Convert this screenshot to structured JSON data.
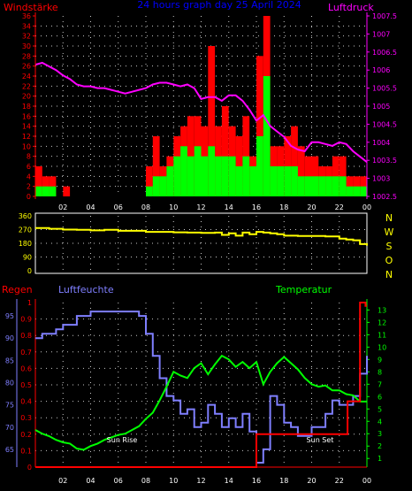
{
  "title": "24 hours graph day  25 April 2024",
  "colors": {
    "background": "#000000",
    "wind_avg": "#00ff00",
    "gust": "#ff0000",
    "pressure": "#ff00ff",
    "wind_dir": "#ffff00",
    "humidity": "#7f7fff",
    "temperature": "#00ff00",
    "rain": "#ff0000",
    "grid": "#c8c8c8",
    "axis_red": "#ff0000",
    "axis_magenta": "#ff00ff",
    "axis_yellow": "#ffff00",
    "axis_blue": "#7f7fff",
    "axis_green": "#00ff00",
    "tick_x": "#ffffff"
  },
  "chart_data": [
    {
      "type": "bar",
      "title": "24 hours graph day  25 April 2024",
      "ylabel_left": "Windstärke",
      "ylabel_right": "Luftdruck",
      "x_ticks": [
        "02",
        "04",
        "06",
        "08",
        "10",
        "12",
        "14",
        "16",
        "18",
        "20",
        "22",
        "00"
      ],
      "x_range": [
        0,
        24
      ],
      "ylim_left": [
        0,
        36
      ],
      "y_ticks_left": [
        "0",
        "2",
        "4",
        "6",
        "8",
        "10",
        "12",
        "14",
        "16",
        "18",
        "20",
        "22",
        "24",
        "26",
        "28",
        "30",
        "32",
        "34",
        "36"
      ],
      "ylim_right": [
        1002.5,
        1007.5
      ],
      "y_ticks_right": [
        "1002.5",
        "1003",
        "1003.5",
        "1004",
        "1004.5",
        "1005",
        "1005.5",
        "1006",
        "1006.5",
        "1007",
        "1007.5"
      ],
      "series": [
        {
          "name": "Luftdruck",
          "type": "line",
          "x": [
            0,
            0.5,
            1,
            1.5,
            2,
            2.5,
            3,
            3.5,
            4,
            4.5,
            5,
            5.5,
            6,
            6.5,
            7,
            7.5,
            8,
            8.5,
            9,
            9.5,
            10,
            10.5,
            11,
            11.5,
            12,
            12.5,
            13,
            13.5,
            14,
            14.5,
            15,
            15.5,
            16,
            16.5,
            17,
            17.5,
            18,
            18.5,
            19,
            19.5,
            20,
            20.5,
            21,
            21.5,
            22,
            22.5,
            23,
            23.5,
            24
          ],
          "y": [
            1006.15,
            1006.2,
            1006.1,
            1006.0,
            1005.85,
            1005.75,
            1005.6,
            1005.55,
            1005.55,
            1005.5,
            1005.5,
            1005.45,
            1005.4,
            1005.35,
            1005.4,
            1005.45,
            1005.5,
            1005.6,
            1005.65,
            1005.65,
            1005.6,
            1005.55,
            1005.6,
            1005.5,
            1005.2,
            1005.25,
            1005.25,
            1005.15,
            1005.3,
            1005.3,
            1005.15,
            1004.9,
            1004.6,
            1004.75,
            1004.45,
            1004.3,
            1004.15,
            1003.9,
            1003.8,
            1003.75,
            1004.0,
            1004.0,
            1003.95,
            1003.9,
            1004.0,
            1003.95,
            1003.75,
            1003.6,
            1003.45
          ]
        },
        {
          "name": "Windböen",
          "type": "bar",
          "x": [
            0,
            0.5,
            1,
            1.5,
            2,
            2.5,
            3,
            3.5,
            4,
            4.5,
            5,
            5.5,
            6,
            6.5,
            7,
            7.5,
            8,
            8.5,
            9,
            9.5,
            10,
            10.5,
            11,
            11.5,
            12,
            12.5,
            13,
            13.5,
            14,
            14.5,
            15,
            15.5,
            16,
            16.5,
            17,
            17.5,
            18,
            18.5,
            19,
            19.5,
            20,
            20.5,
            21,
            21.5,
            22,
            22.5,
            23,
            23.5
          ],
          "y": [
            6,
            4,
            4,
            0,
            2,
            0,
            0,
            0,
            0,
            0,
            0,
            0,
            0,
            0,
            0,
            0,
            6,
            12,
            6,
            8,
            12,
            14,
            16,
            16,
            14,
            30,
            14,
            18,
            14,
            12,
            16,
            8,
            28,
            36,
            10,
            10,
            12,
            14,
            10,
            8,
            8,
            6,
            6,
            8,
            8,
            4,
            4,
            4
          ]
        },
        {
          "name": "Windstärke",
          "type": "bar",
          "x": [
            0,
            0.5,
            1,
            1.5,
            2,
            2.5,
            3,
            3.5,
            4,
            4.5,
            5,
            5.5,
            6,
            6.5,
            7,
            7.5,
            8,
            8.5,
            9,
            9.5,
            10,
            10.5,
            11,
            11.5,
            12,
            12.5,
            13,
            13.5,
            14,
            14.5,
            15,
            15.5,
            16,
            16.5,
            17,
            17.5,
            18,
            18.5,
            19,
            19.5,
            20,
            20.5,
            21,
            21.5,
            22,
            22.5,
            23,
            23.5
          ],
          "y": [
            2,
            2,
            2,
            0,
            0,
            0,
            0,
            0,
            0,
            0,
            0,
            0,
            0,
            0,
            0,
            0,
            2,
            4,
            4,
            6,
            8,
            10,
            8,
            10,
            8,
            10,
            8,
            8,
            8,
            6,
            8,
            6,
            12,
            24,
            6,
            6,
            6,
            6,
            4,
            4,
            4,
            4,
            4,
            4,
            4,
            2,
            2,
            2
          ]
        }
      ]
    },
    {
      "type": "line",
      "ylabel_right": [
        "N",
        "W",
        "S",
        "O",
        "N"
      ],
      "x_range": [
        0,
        24
      ],
      "ylim": [
        0,
        360
      ],
      "y_ticks": [
        "0",
        "90",
        "180",
        "270",
        "360"
      ],
      "series": [
        {
          "name": "Windrichtung",
          "x": [
            0,
            1,
            2,
            3,
            4,
            5,
            6,
            7,
            8,
            9,
            10,
            11,
            12,
            13,
            13.5,
            14,
            14.5,
            15,
            15.5,
            16,
            16.5,
            17,
            17.5,
            18,
            19,
            20,
            21,
            22,
            22.5,
            23,
            23.5,
            24
          ],
          "y": [
            280,
            275,
            270,
            268,
            265,
            268,
            262,
            262,
            255,
            255,
            252,
            250,
            248,
            250,
            235,
            245,
            230,
            250,
            240,
            255,
            250,
            245,
            240,
            230,
            228,
            228,
            225,
            210,
            205,
            200,
            175,
            165
          ]
        }
      ]
    },
    {
      "type": "line",
      "ylabel_left": "Regen",
      "ylabel_center": "Luftfeuchte",
      "ylabel_right": "Temperatur",
      "annotations": [
        "Sun Rise",
        "Sun Set"
      ],
      "x_ticks": [
        "02",
        "04",
        "06",
        "08",
        "10",
        "12",
        "14",
        "16",
        "18",
        "20",
        "22",
        "00"
      ],
      "x_range": [
        0,
        24
      ],
      "rain_ticks": [
        "0",
        "0.1",
        "0.2",
        "0.3",
        "0.4",
        "0.5",
        "0.6",
        "0.7",
        "0.8",
        "0.9",
        "1"
      ],
      "rain_ylim": [
        0,
        1
      ],
      "humidity_ticks": [
        "65",
        "70",
        "75",
        "80",
        "85",
        "90",
        "95"
      ],
      "humidity_ylim": [
        61,
        98
      ],
      "temperature_ticks": [
        "1",
        "2",
        "3",
        "4",
        "5",
        "6",
        "7",
        "8",
        "9",
        "10",
        "11",
        "12",
        "13"
      ],
      "temperature_ylim": [
        0.3,
        13.6
      ],
      "series": [
        {
          "name": "Luftfeuchte",
          "x": [
            0,
            0.5,
            1,
            1.5,
            2,
            3,
            4,
            5,
            6,
            7,
            7.5,
            8,
            8.5,
            9,
            9.5,
            10,
            10.5,
            11,
            11.5,
            12,
            12.5,
            13,
            13.5,
            14,
            14.5,
            15,
            15.5,
            16,
            16.5,
            17,
            17.5,
            18,
            18.5,
            19,
            20,
            21,
            21.5,
            22,
            22.5,
            23,
            23.5,
            24
          ],
          "y": [
            90,
            91,
            91,
            92,
            93,
            95,
            96,
            96,
            96,
            96,
            95,
            91,
            86,
            81,
            77,
            76,
            73,
            74,
            70,
            71,
            75,
            73,
            70,
            72,
            70,
            73,
            69,
            62,
            65,
            77,
            75,
            71,
            70,
            68,
            70,
            73,
            76,
            75,
            75,
            77,
            82,
            86
          ]
        },
        {
          "name": "Temperatur",
          "x": [
            0,
            0.5,
            1,
            1.5,
            2,
            2.5,
            3,
            3.5,
            4,
            4.5,
            5,
            5.5,
            6,
            6.5,
            7,
            7.5,
            8,
            8.5,
            9,
            9.5,
            10,
            10.5,
            11,
            11.5,
            12,
            12.5,
            13,
            13.5,
            14,
            14.5,
            15,
            15.5,
            16,
            16.5,
            17,
            17.5,
            18,
            18.5,
            19,
            19.5,
            20,
            20.5,
            21,
            21.5,
            22,
            22.5,
            23,
            23.5,
            24
          ],
          "y": [
            3.3,
            3.0,
            2.8,
            2.5,
            2.3,
            2.2,
            1.8,
            1.7,
            2.0,
            2.2,
            2.5,
            2.7,
            2.9,
            3.0,
            3.3,
            3.6,
            4.2,
            4.7,
            5.7,
            6.8,
            8.0,
            7.7,
            7.5,
            8.3,
            8.7,
            7.8,
            8.6,
            9.3,
            9.0,
            8.4,
            8.8,
            8.3,
            8.8,
            7.0,
            8.0,
            8.7,
            9.2,
            8.7,
            8.2,
            7.5,
            7.0,
            6.8,
            6.9,
            6.5,
            6.5,
            6.2,
            6.1,
            5.6,
            5.6
          ]
        },
        {
          "name": "Regen",
          "x": [
            0,
            16,
            16,
            22.6,
            22.6,
            23.5,
            23.5,
            23.9,
            23.9,
            24
          ],
          "y": [
            0,
            0,
            0.2,
            0.2,
            0.4,
            0.4,
            1.0,
            1.0,
            0.98,
            0.98
          ]
        }
      ]
    }
  ]
}
